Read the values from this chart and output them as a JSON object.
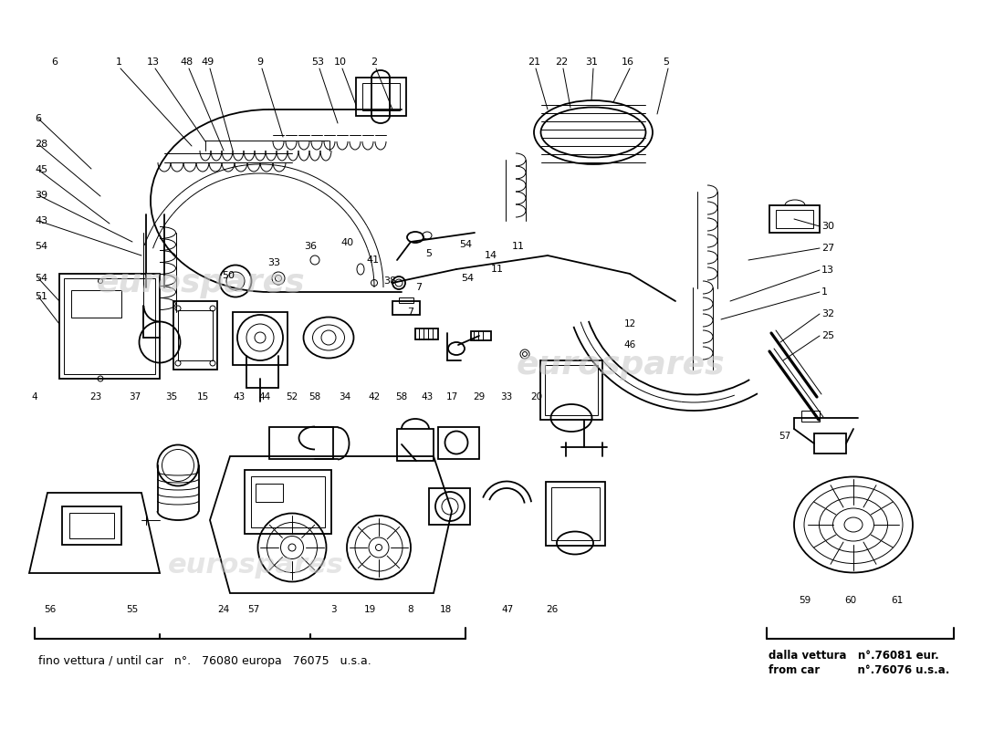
{
  "bg_color": "#ffffff",
  "line_color": "#000000",
  "watermark_color": "#c8c8c8",
  "watermark_text": "eurospares",
  "footer_left": "fino vettura / until car  n°.  76080 europa  76075  u.s.a.",
  "footer_right_1": "dalla vettura   n°.76081 eur.",
  "footer_right_2": "from car          n°.76076 u.s.a.",
  "lw": 1.3,
  "thin": 0.7,
  "med": 1.0
}
